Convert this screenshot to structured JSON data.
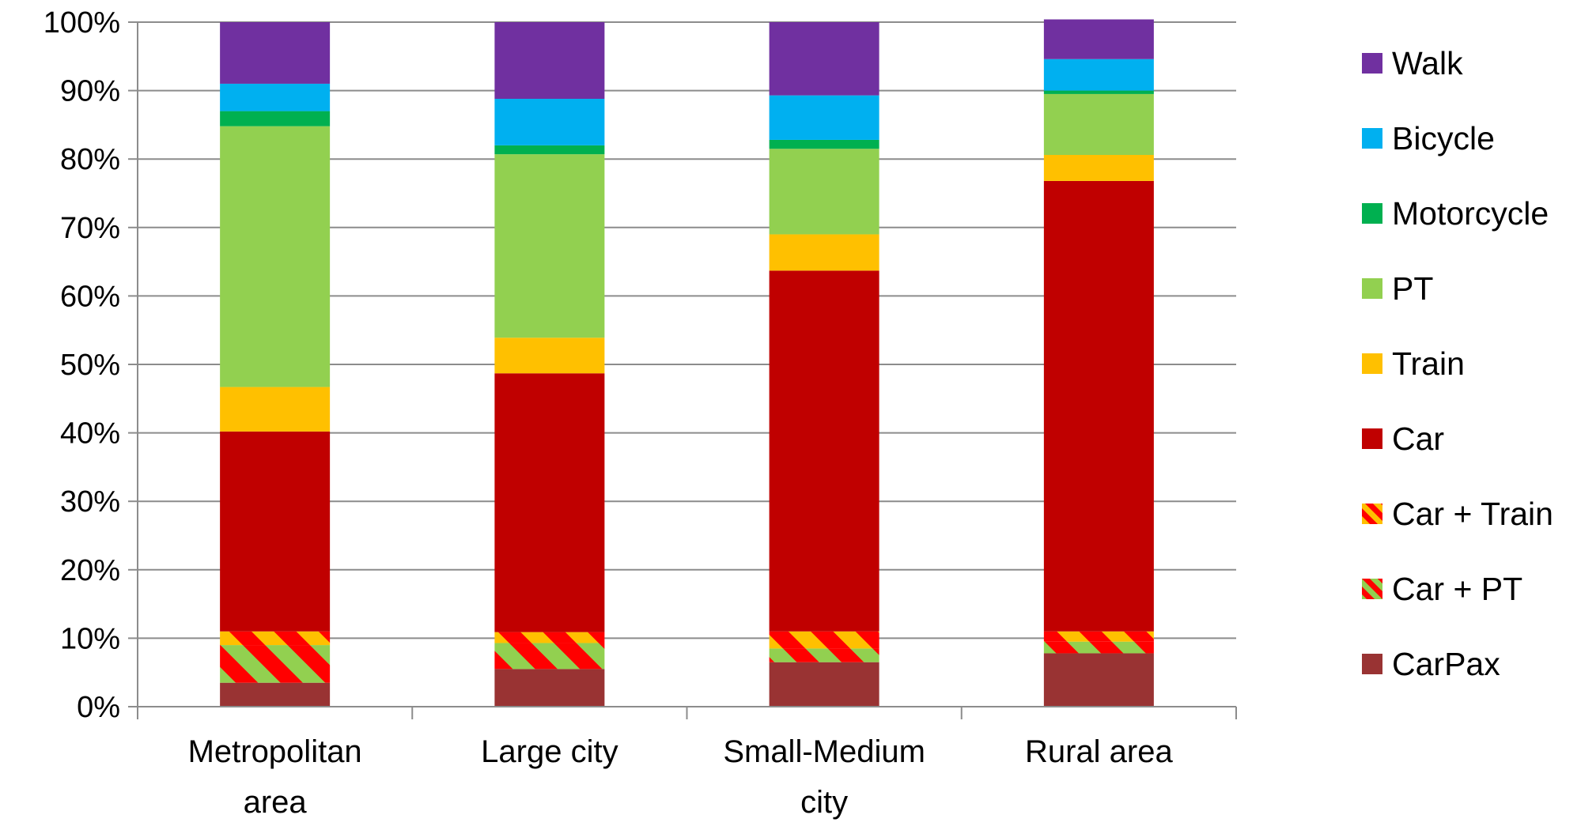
{
  "chart_data": {
    "type": "bar",
    "stacked": true,
    "title": "",
    "xlabel": "",
    "ylabel": "",
    "ylim": [
      0,
      100
    ],
    "y_ticks": [
      "0%",
      "10%",
      "20%",
      "30%",
      "40%",
      "50%",
      "60%",
      "70%",
      "80%",
      "90%",
      "100%"
    ],
    "grid": true,
    "legend_position": "right",
    "categories": [
      [
        "Metropolitan",
        "area"
      ],
      [
        "Large city"
      ],
      [
        "Small-Medium",
        "city"
      ],
      [
        "Rural area"
      ]
    ],
    "series": [
      {
        "name": "CarPax",
        "color": "#993333",
        "pattern": "solid",
        "values": [
          3.5,
          5.5,
          6.5,
          7.8
        ]
      },
      {
        "name": "Car + PT",
        "color": "#ff0000",
        "color2": "#92d050",
        "pattern": "striped",
        "values": [
          5.5,
          3.8,
          2.0,
          1.7
        ]
      },
      {
        "name": "Car + Train",
        "color": "#ff0000",
        "color2": "#ffc000",
        "pattern": "striped",
        "values": [
          2.0,
          1.6,
          2.5,
          1.5
        ]
      },
      {
        "name": "Car",
        "color": "#c00000",
        "pattern": "solid",
        "values": [
          29.2,
          37.8,
          52.7,
          65.8
        ]
      },
      {
        "name": "Train",
        "color": "#ffc000",
        "pattern": "solid",
        "values": [
          6.5,
          5.2,
          5.3,
          3.8
        ]
      },
      {
        "name": "PT",
        "color": "#92d050",
        "pattern": "solid",
        "values": [
          38.1,
          26.8,
          12.5,
          8.9
        ]
      },
      {
        "name": "Motorcycle",
        "color": "#00b050",
        "pattern": "solid",
        "values": [
          2.2,
          1.3,
          1.3,
          0.5
        ]
      },
      {
        "name": "Bicycle",
        "color": "#00b0f0",
        "pattern": "solid",
        "values": [
          4.0,
          6.8,
          6.5,
          4.6
        ]
      },
      {
        "name": "Walk",
        "color": "#7030a0",
        "pattern": "solid",
        "values": [
          9.0,
          11.2,
          10.7,
          5.8
        ]
      }
    ],
    "legend_order": [
      "Walk",
      "Bicycle",
      "Motorcycle",
      "PT",
      "Train",
      "Car",
      "Car + Train",
      "Car + PT",
      "CarPax"
    ]
  }
}
